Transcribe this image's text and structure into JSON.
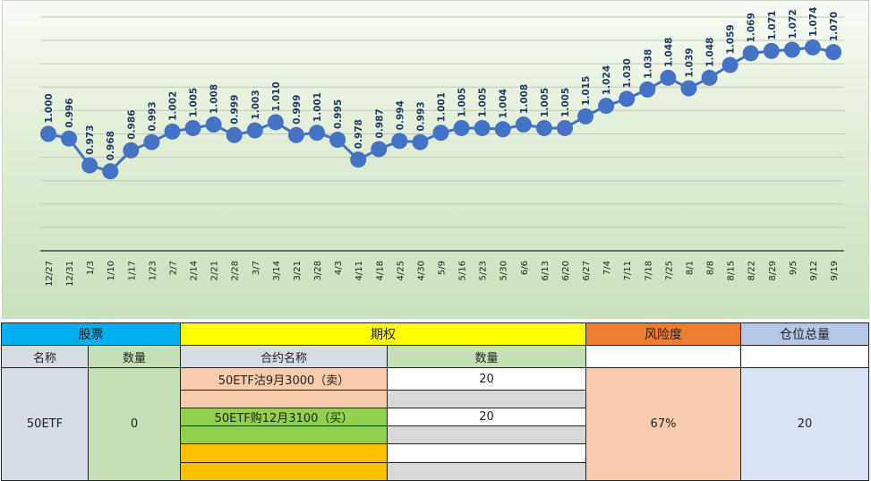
{
  "chart_data": {
    "type": "line",
    "title": "",
    "xlabel": "",
    "ylabel": "",
    "ylim": [
      0.9,
      1.1
    ],
    "grid": true,
    "legend": "none",
    "series_color": "#4472c4",
    "categories": [
      "12/27",
      "12/31",
      "1/3",
      "1/10",
      "1/17",
      "1/23",
      "2/7",
      "2/14",
      "2/21",
      "2/28",
      "3/7",
      "3/14",
      "3/21",
      "3/28",
      "4/3",
      "4/11",
      "4/18",
      "4/25",
      "4/30",
      "5/9",
      "5/16",
      "5/23",
      "5/30",
      "6/6",
      "6/13",
      "6/20",
      "6/27",
      "7/4",
      "7/11",
      "7/18",
      "7/25",
      "8/1",
      "8/8",
      "8/15",
      "8/22",
      "8/29",
      "9/5",
      "9/12",
      "9/19"
    ],
    "values": [
      1.0,
      0.996,
      0.973,
      0.968,
      0.986,
      0.993,
      1.002,
      1.005,
      1.008,
      0.999,
      1.003,
      1.01,
      0.999,
      1.001,
      0.995,
      0.978,
      0.987,
      0.994,
      0.993,
      1.001,
      1.005,
      1.005,
      1.004,
      1.008,
      1.005,
      1.005,
      1.015,
      1.024,
      1.03,
      1.038,
      1.048,
      1.039,
      1.048,
      1.059,
      1.069,
      1.071,
      1.072,
      1.074,
      1.07
    ]
  },
  "table": {
    "stock_header": "股票",
    "option_header": "期权",
    "risk_header": "风险度",
    "position_header": "仓位总量",
    "name_col": "名称",
    "qty_col": "数量",
    "contract_col": "合约名称",
    "opt_qty_col": "数量",
    "stock_name": "50ETF",
    "stock_qty": "0",
    "contract1": "50ETF沽9月3000（卖）",
    "contract1_qty": "20",
    "contract2": "50ETF购12月3100（买）",
    "contract2_qty": "20",
    "risk": "67%",
    "position": "20",
    "colors": {
      "stock": "#00b0f0",
      "option": "#ffff00",
      "risk": "#ed7d31",
      "position": "#b4c7e7"
    }
  }
}
